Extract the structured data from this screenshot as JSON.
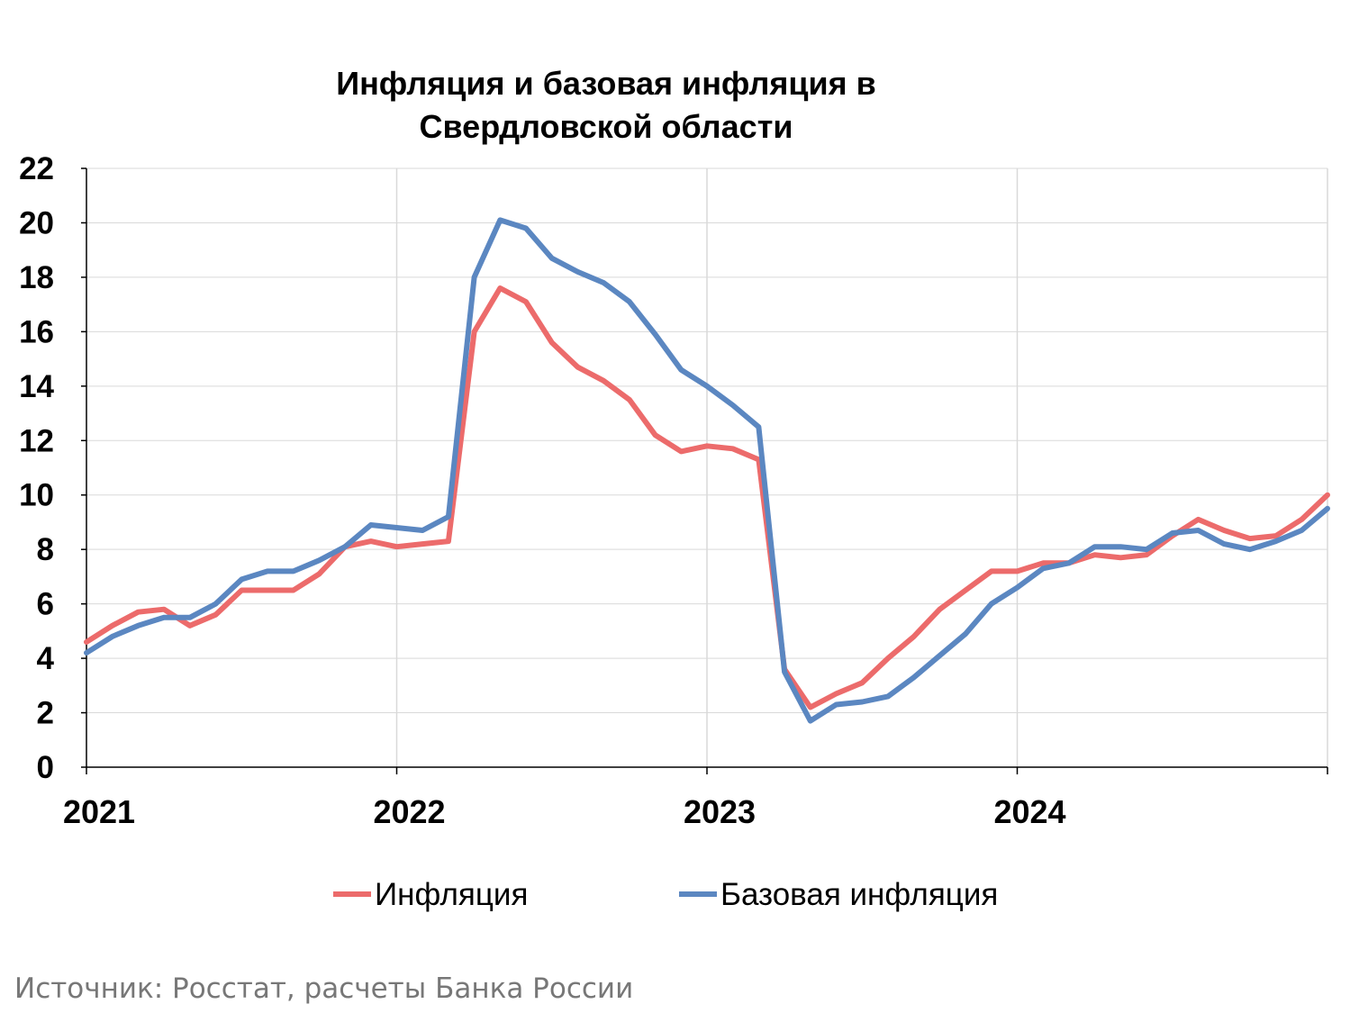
{
  "chart_data": {
    "type": "line",
    "title_lines": [
      "Инфляция и базовая инфляция в",
      "Свердловской области"
    ],
    "ylim": [
      0,
      22
    ],
    "yticks": [
      "0",
      "2",
      "4",
      "6",
      "8",
      "10",
      "12",
      "14",
      "16",
      "18",
      "20",
      "22"
    ],
    "xlim": [
      0,
      48
    ],
    "xticks": [
      {
        "x": 0,
        "label": "2021"
      },
      {
        "x": 12,
        "label": "2022"
      },
      {
        "x": 24,
        "label": "2023"
      },
      {
        "x": 36,
        "label": "2024"
      }
    ],
    "grid": true,
    "legend_position": "bottom",
    "series": [
      {
        "name": "Инфляция",
        "color": "#EC6B6B",
        "values": [
          4.6,
          5.2,
          5.7,
          5.8,
          5.2,
          5.6,
          6.5,
          6.5,
          6.5,
          7.1,
          8.1,
          8.3,
          8.1,
          8.2,
          8.3,
          16.0,
          17.6,
          17.1,
          15.6,
          14.7,
          14.2,
          13.5,
          12.2,
          11.6,
          11.8,
          11.7,
          11.3,
          3.6,
          2.2,
          2.7,
          3.1,
          4.0,
          4.8,
          5.8,
          6.5,
          7.2,
          7.2,
          7.5,
          7.5,
          7.8,
          7.7,
          7.8,
          8.5,
          9.1,
          8.7,
          8.4,
          8.5,
          9.1,
          10.0
        ]
      },
      {
        "name": "Базовая инфляция",
        "color": "#5B87C1",
        "values": [
          4.2,
          4.8,
          5.2,
          5.5,
          5.5,
          6.0,
          6.9,
          7.2,
          7.2,
          7.6,
          8.1,
          8.9,
          8.8,
          8.7,
          9.2,
          18.0,
          20.1,
          19.8,
          18.7,
          18.2,
          17.8,
          17.1,
          15.9,
          14.6,
          14.0,
          13.3,
          12.5,
          3.5,
          1.7,
          2.3,
          2.4,
          2.6,
          3.3,
          4.1,
          4.9,
          6.0,
          6.6,
          7.3,
          7.5,
          8.1,
          8.1,
          8.0,
          8.6,
          8.7,
          8.2,
          8.0,
          8.3,
          8.7,
          9.5
        ]
      }
    ]
  },
  "source_text": "Источник: Росстат, расчеты Банка России"
}
